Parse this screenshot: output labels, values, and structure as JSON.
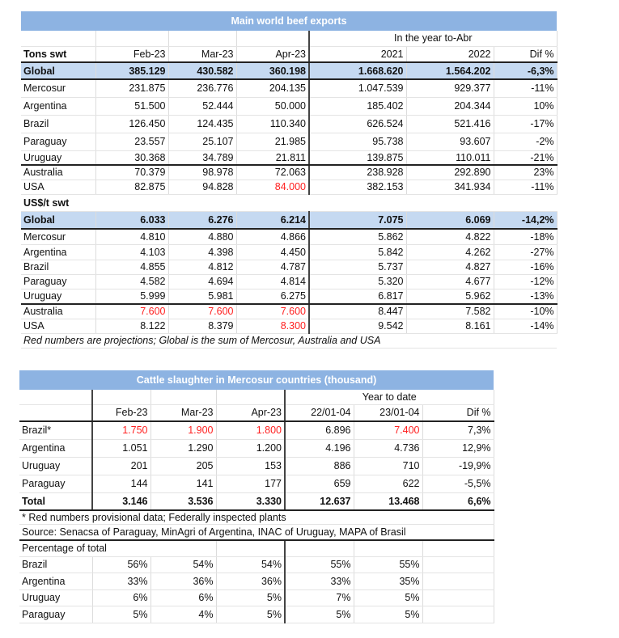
{
  "exports": {
    "title": "Main world beef exports",
    "period_label": "In the year to-Abr",
    "columns": [
      "Tons swt",
      "Feb-23",
      "Mar-23",
      "Apr-23",
      "2021",
      "2022",
      "Dif %"
    ],
    "tons_rows": [
      {
        "label": "Global",
        "values": [
          "385.129",
          "430.582",
          "360.198",
          "1.668.620",
          "1.564.202",
          "-6,3%"
        ],
        "red": []
      },
      {
        "label": "Mercosur",
        "values": [
          "231.875",
          "236.776",
          "204.135",
          "1.047.539",
          "929.377",
          "-11%"
        ],
        "red": []
      },
      {
        "label": "Argentina",
        "values": [
          "51.500",
          "52.444",
          "50.000",
          "185.402",
          "204.344",
          "10%"
        ],
        "red": []
      },
      {
        "label": "Brazil",
        "values": [
          "126.450",
          "124.435",
          "110.340",
          "626.524",
          "521.416",
          "-17%"
        ],
        "red": []
      },
      {
        "label": "Paraguay",
        "values": [
          "23.557",
          "25.107",
          "21.985",
          "95.738",
          "93.607",
          "-2%"
        ],
        "red": []
      },
      {
        "label": "Uruguay",
        "values": [
          "30.368",
          "34.789",
          "21.811",
          "139.875",
          "110.011",
          "-21%"
        ],
        "red": []
      },
      {
        "label": "Australia",
        "values": [
          "70.379",
          "98.978",
          "72.063",
          "238.928",
          "292.890",
          "23%"
        ],
        "red": []
      },
      {
        "label": "USA",
        "values": [
          "82.875",
          "94.828",
          "84.000",
          "382.153",
          "341.934",
          "-11%"
        ],
        "red": [
          2
        ]
      }
    ],
    "price_label": "US$/t swt",
    "price_rows": [
      {
        "label": "Global",
        "values": [
          "6.033",
          "6.276",
          "6.214",
          "7.075",
          "6.069",
          "-14,2%"
        ],
        "red": []
      },
      {
        "label": "Mercosur",
        "values": [
          "4.810",
          "4.880",
          "4.866",
          "5.862",
          "4.822",
          "-18%"
        ],
        "red": []
      },
      {
        "label": "Argentina",
        "values": [
          "4.103",
          "4.398",
          "4.450",
          "5.842",
          "4.262",
          "-27%"
        ],
        "red": []
      },
      {
        "label": "Brazil",
        "values": [
          "4.855",
          "4.812",
          "4.787",
          "5.737",
          "4.827",
          "-16%"
        ],
        "red": []
      },
      {
        "label": "Paraguay",
        "values": [
          "4.582",
          "4.694",
          "4.814",
          "5.320",
          "4.677",
          "-12%"
        ],
        "red": []
      },
      {
        "label": "Uruguay",
        "values": [
          "5.999",
          "5.981",
          "6.275",
          "6.817",
          "5.962",
          "-13%"
        ],
        "red": []
      },
      {
        "label": "Australia",
        "values": [
          "7.600",
          "7.600",
          "7.600",
          "8.447",
          "7.582",
          "-10%"
        ],
        "red": [
          0,
          1,
          2
        ]
      },
      {
        "label": "USA",
        "values": [
          "8.122",
          "8.379",
          "8.300",
          "9.542",
          "8.161",
          "-14%"
        ],
        "red": [
          2
        ]
      }
    ],
    "note": "Red numbers are projections; Global is the sum of Mercosur, Australia and USA"
  },
  "slaughter": {
    "title": "Cattle slaughter in Mercosur countries (thousand)",
    "period_label": "Year to date",
    "columns": [
      "",
      "Feb-23",
      "Mar-23",
      "Apr-23",
      "22/01-04",
      "23/01-04",
      "Dif %"
    ],
    "rows": [
      {
        "label": "Brazil*",
        "values": [
          "1.750",
          "1.900",
          "1.800",
          "6.896",
          "7.400",
          "7,3%"
        ],
        "red": [
          0,
          1,
          2,
          4
        ]
      },
      {
        "label": "Argentina",
        "values": [
          "1.051",
          "1.290",
          "1.200",
          "4.196",
          "4.736",
          "12,9%"
        ],
        "red": []
      },
      {
        "label": "Uruguay",
        "values": [
          "201",
          "205",
          "153",
          "886",
          "710",
          "-19,9%"
        ],
        "red": []
      },
      {
        "label": "Paraguay",
        "values": [
          "144",
          "141",
          "177",
          "659",
          "622",
          "-5,5%"
        ],
        "red": []
      },
      {
        "label": "Total",
        "values": [
          "3.146",
          "3.536",
          "3.330",
          "12.637",
          "13.468",
          "6,6%"
        ],
        "red": []
      }
    ],
    "note": "* Red numbers provisional data; Federally inspected plants",
    "source": "Source: Senacsa of Paraguay, MinAgri of Argentina, INAC of Uruguay, MAPA of Brasil",
    "pct_label": "Percentage of total",
    "pct_rows": [
      {
        "label": "Brazil",
        "values": [
          "56%",
          "54%",
          "54%",
          "55%",
          "55%",
          ""
        ]
      },
      {
        "label": "Argentina",
        "values": [
          "33%",
          "36%",
          "36%",
          "33%",
          "35%",
          ""
        ]
      },
      {
        "label": "Uruguay",
        "values": [
          "6%",
          "6%",
          "5%",
          "7%",
          "5%",
          ""
        ]
      },
      {
        "label": "Paraguay",
        "values": [
          "5%",
          "4%",
          "5%",
          "5%",
          "5%",
          ""
        ]
      }
    ]
  },
  "colors": {
    "title_bar": "#8db3e2",
    "global_row": "#c5d9f1",
    "projection": "#ff2020"
  }
}
